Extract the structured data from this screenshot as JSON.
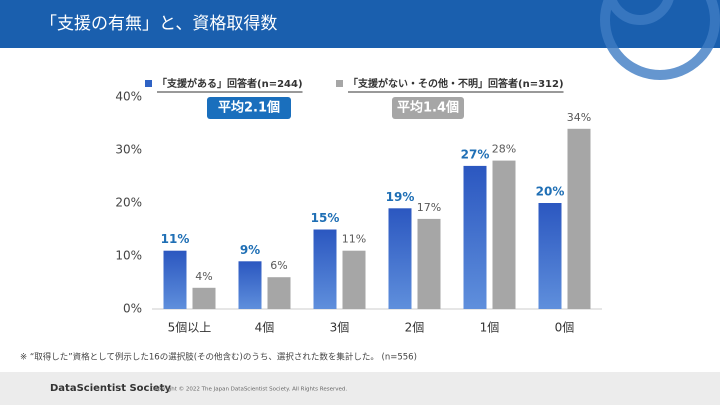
{
  "header": {
    "title": "「支援の有無」と、資格取得数"
  },
  "chart_data": {
    "type": "bar",
    "categories": [
      "5個以上",
      "4個",
      "3個",
      "2個",
      "1個",
      "0個"
    ],
    "series": [
      {
        "name": "「支援がある」回答者(n=244)",
        "color": "#2f62c4",
        "label_color": "#1f6fb5",
        "values": [
          11,
          9,
          15,
          19,
          27,
          20
        ],
        "value_labels": [
          "11%",
          "9%",
          "15%",
          "19%",
          "27%",
          "20%"
        ]
      },
      {
        "name": "「支援がない・その他・不明」回答者(n=312)",
        "color": "#a6a6a6",
        "label_color": "#595959",
        "values": [
          4,
          6,
          11,
          17,
          28,
          34
        ],
        "value_labels": [
          "4%",
          "6%",
          "11%",
          "17%",
          "28%",
          "34%"
        ]
      }
    ],
    "annotations": [
      "平均2.1個",
      "平均1.4個"
    ],
    "ylim": [
      0,
      40
    ],
    "yticks": [
      {
        "value": 0,
        "label": "0%"
      },
      {
        "value": 10,
        "label": "10%"
      },
      {
        "value": 20,
        "label": "20%"
      },
      {
        "value": 30,
        "label": "30%"
      },
      {
        "value": 40,
        "label": "40%"
      }
    ],
    "grid": false
  },
  "footnote": "※ “取得した”資格として例示した16の選択肢(その他含む)のうち、選択された数を集計した。 (n=556)",
  "footer": {
    "brand": "DataScientist Society",
    "copyright": "Copyright © 2022 The Japan DataScientist Society. All Rights Reserved."
  }
}
